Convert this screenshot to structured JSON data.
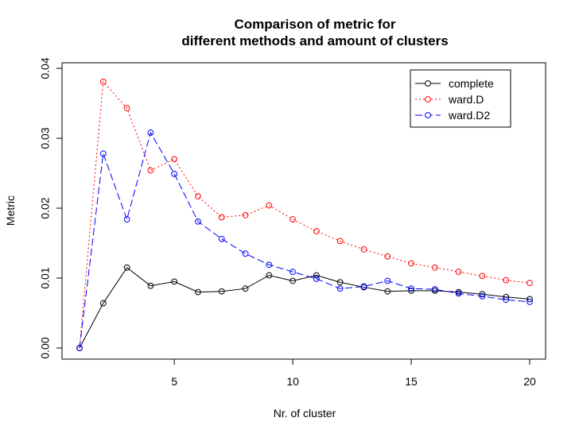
{
  "chart_data": {
    "type": "line",
    "title_line1": "Comparison of metric for",
    "title_line2": "different methods and amount of clusters",
    "xlabel": "Nr. of cluster",
    "ylabel": "Metric",
    "xlim": [
      1,
      20
    ],
    "ylim": [
      0,
      0.04
    ],
    "x_ticks": [
      "5",
      "10",
      "15",
      "20"
    ],
    "y_ticks": [
      "0.00",
      "0.01",
      "0.02",
      "0.03",
      "0.04"
    ],
    "legend_position": "top-right",
    "x": [
      1,
      2,
      3,
      4,
      5,
      6,
      7,
      8,
      9,
      10,
      11,
      12,
      13,
      14,
      15,
      16,
      17,
      18,
      19,
      20
    ],
    "series": [
      {
        "name": "complete",
        "color": "#000000",
        "dash": "solid",
        "values": [
          0.0,
          0.0064,
          0.0115,
          0.0089,
          0.0095,
          0.008,
          0.0081,
          0.0085,
          0.0104,
          0.0096,
          0.0104,
          0.0094,
          0.0087,
          0.0081,
          0.0082,
          0.0082,
          0.008,
          0.0077,
          0.0073,
          0.007
        ]
      },
      {
        "name": "ward.D",
        "color": "#ff0000",
        "dash": "dotted",
        "values": [
          0.0,
          0.0381,
          0.0343,
          0.0254,
          0.027,
          0.0217,
          0.0187,
          0.019,
          0.0204,
          0.0184,
          0.0167,
          0.0153,
          0.0141,
          0.0131,
          0.0121,
          0.0115,
          0.0109,
          0.0103,
          0.0097,
          0.0093
        ]
      },
      {
        "name": "ward.D2",
        "color": "#0000ff",
        "dash": "dashed",
        "values": [
          0.0,
          0.0278,
          0.0184,
          0.0308,
          0.0249,
          0.0181,
          0.0156,
          0.0135,
          0.0119,
          0.0109,
          0.0099,
          0.0085,
          0.0088,
          0.0096,
          0.0085,
          0.0084,
          0.0078,
          0.0074,
          0.0069,
          0.0066
        ]
      }
    ]
  }
}
